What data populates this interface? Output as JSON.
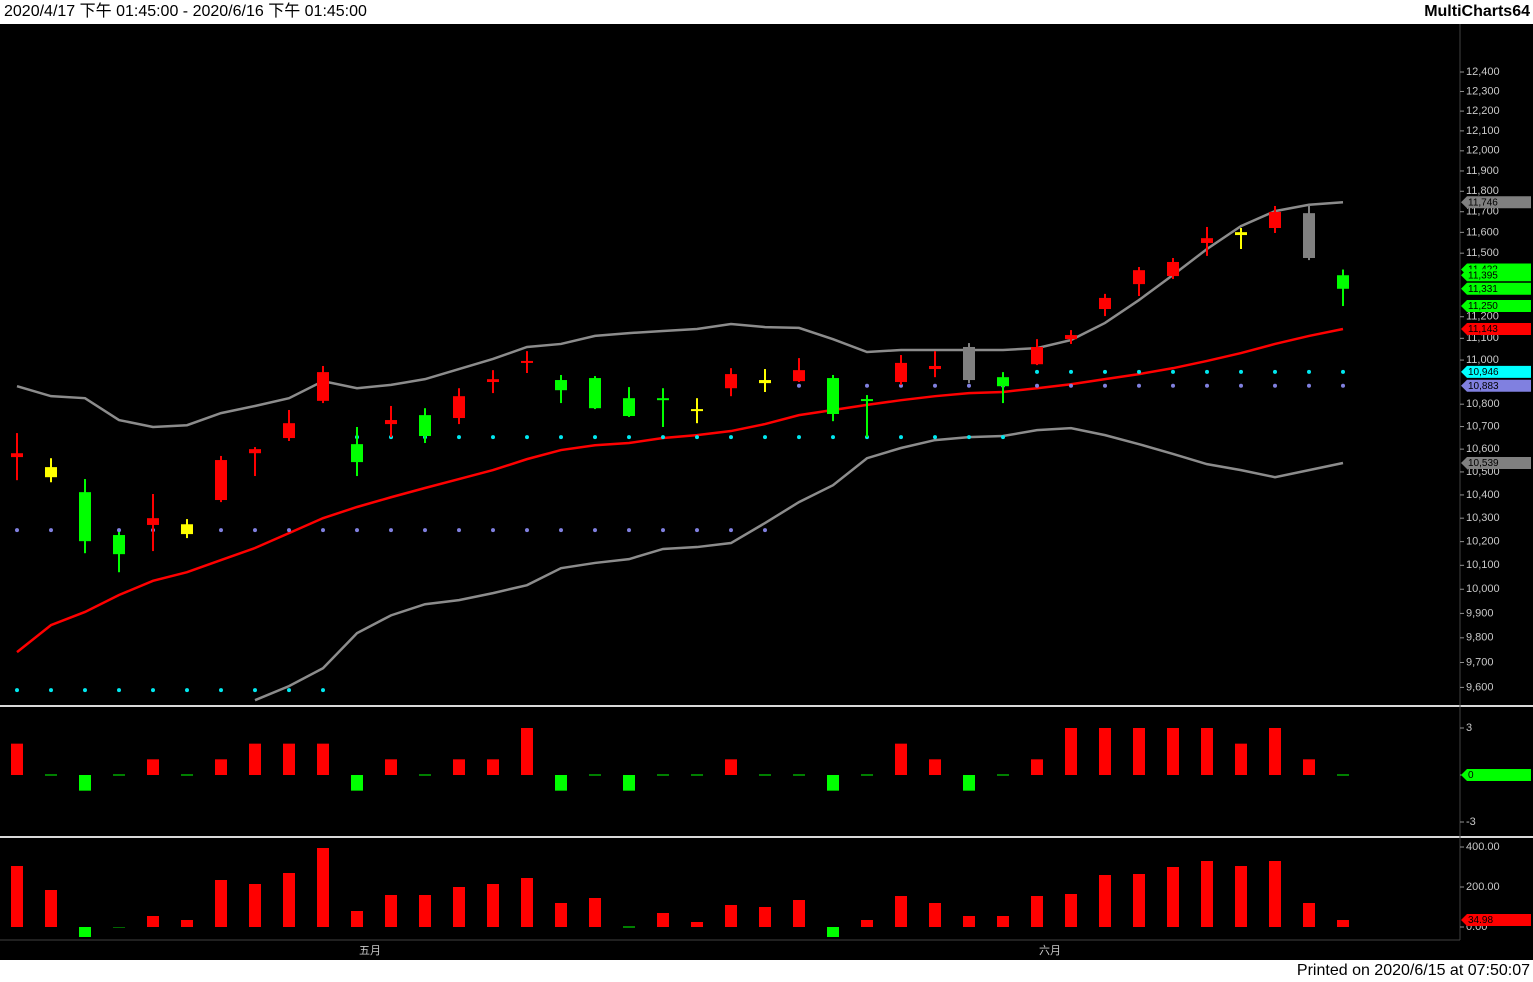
{
  "header": {
    "title": "2020/4/17 下午 01:45:00 - 2020/6/16 下午 01:45:00",
    "brand": "MultiCharts64"
  },
  "footer": {
    "printed": "Printed on 2020/6/15 at 07:50:07"
  },
  "chart_data": [
    {
      "type": "candlestick",
      "categories": [
        null,
        null,
        null,
        null,
        null,
        null,
        null,
        null,
        null,
        null,
        "五月",
        null,
        null,
        null,
        null,
        null,
        null,
        null,
        null,
        null,
        null,
        null,
        null,
        null,
        null,
        null,
        null,
        null,
        null,
        null,
        "六月",
        null,
        null,
        null,
        null,
        null,
        null,
        null,
        null,
        null
      ],
      "open": [
        10565,
        10477,
        10412,
        10228,
        10271,
        10232,
        10378,
        10582,
        10649,
        10815,
        10622,
        10711,
        10751,
        10738,
        10900,
        10987,
        10909,
        10918,
        10827,
        10827,
        10769,
        10872,
        10895,
        10904,
        10918,
        10823,
        10900,
        10959,
        10909,
        10922,
        10981,
        11096,
        11236,
        11353,
        11391,
        11549,
        11587,
        11621,
        11693,
        11395
      ],
      "high": [
        10671,
        10560,
        10469,
        10241,
        10404,
        10296,
        10570,
        10609,
        10774,
        10973,
        10698,
        10792,
        10782,
        10872,
        10954,
        11041,
        10932,
        10927,
        10877,
        10872,
        10827,
        10963,
        10959,
        11009,
        10932,
        10841,
        11023,
        11041,
        11078,
        10945,
        11096,
        11138,
        11307,
        11434,
        11477,
        11626,
        11621,
        11728,
        11733,
        11422
      ],
      "low": [
        10464,
        10455,
        10151,
        10071,
        10160,
        10215,
        10369,
        10482,
        10636,
        10805,
        10482,
        10653,
        10627,
        10711,
        10850,
        10941,
        10805,
        10778,
        10743,
        10698,
        10715,
        10836,
        10855,
        10900,
        10724,
        10653,
        10887,
        10922,
        10895,
        10805,
        10977,
        11074,
        11203,
        11297,
        11377,
        11487,
        11520,
        11597,
        11467,
        11250
      ],
      "close": [
        10582,
        10521,
        10202,
        10147,
        10300,
        10274,
        10552,
        10600,
        10715,
        10945,
        10543,
        10729,
        10658,
        10836,
        10913,
        10996,
        10863,
        10782,
        10747,
        10818,
        10778,
        10936,
        10909,
        10954,
        10756,
        10815,
        10987,
        10973,
        11060,
        10881,
        11060,
        11115,
        11288,
        11419,
        11458,
        11572,
        11601,
        11699,
        11477,
        11331
      ],
      "candle_colors": [
        "#ff0000",
        "#ffff00",
        "#00ff00",
        "#00ff00",
        "#ff0000",
        "#ffff00",
        "#ff0000",
        "#ff0000",
        "#ff0000",
        "#ff0000",
        "#00ff00",
        "#ff0000",
        "#00ff00",
        "#ff0000",
        "#ff0000",
        "#ff0000",
        "#00ff00",
        "#00ff00",
        "#00ff00",
        "#00ff00",
        "#ffff00",
        "#ff0000",
        "#ffff00",
        "#ff0000",
        "#00ff00",
        "#00ff00",
        "#ff0000",
        "#ff0000",
        "#808080",
        "#00ff00",
        "#ff0000",
        "#ff0000",
        "#ff0000",
        "#ff0000",
        "#ff0000",
        "#ff0000",
        "#ffff00",
        "#ff0000",
        "#808080",
        "#00ff00"
      ],
      "lines": [
        {
          "color": "#8c8c8c",
          "values": [
            10881,
            10836,
            10827,
            10729,
            10698,
            10706,
            10760,
            10792,
            10827,
            10904,
            10872,
            10887,
            10913,
            10959,
            11005,
            11060,
            11074,
            11111,
            11124,
            11134,
            11143,
            11166,
            11152,
            11148,
            11096,
            11037,
            11046,
            11046,
            11046,
            11046,
            11055,
            11092,
            11171,
            11278,
            11396,
            11520,
            11630,
            11703,
            11734,
            11746
          ]
        },
        {
          "color": "#ff0000",
          "values": [
            9742,
            9852,
            9906,
            9976,
            10035,
            10071,
            10122,
            10173,
            10236,
            10300,
            10348,
            10390,
            10430,
            10469,
            10508,
            10556,
            10596,
            10617,
            10627,
            10649,
            10662,
            10680,
            10711,
            10751,
            10774,
            10797,
            10818,
            10836,
            10850,
            10855,
            10872,
            10890,
            10913,
            10936,
            10963,
            10996,
            11032,
            11074,
            11111,
            11143
          ]
        },
        {
          "color": "#8c8c8c",
          "values": [
            null,
            null,
            null,
            null,
            null,
            null,
            null,
            9549,
            9605,
            9677,
            9819,
            9892,
            9938,
            9955,
            9984,
            10017,
            10088,
            10110,
            10126,
            10169,
            10177,
            10194,
            10279,
            10369,
            10442,
            10560,
            10605,
            10640,
            10653,
            10658,
            10684,
            10693,
            10662,
            10622,
            10579,
            10534,
            10508,
            10477,
            10508,
            10539
          ]
        }
      ],
      "dots": [
        {
          "color": "#00e8f0",
          "values": [
            9589,
            9589,
            9589,
            9589,
            9589,
            9589,
            9589,
            9589,
            9589,
            9589,
            10653,
            10653,
            10653,
            10653,
            10653,
            10653,
            10653,
            10653,
            10653,
            10653,
            10653,
            10653,
            10653,
            10653,
            10653,
            10653,
            10653,
            10653,
            10653,
            10653,
            10946,
            10946,
            10946,
            10946,
            10946,
            10946,
            10946,
            10946,
            10946,
            10946
          ]
        },
        {
          "color": "#8080e0",
          "values": [
            10249,
            10249,
            10249,
            10249,
            10249,
            10249,
            10249,
            10249,
            10249,
            10249,
            10249,
            10249,
            10249,
            10249,
            10249,
            10249,
            10249,
            10249,
            10249,
            10249,
            10249,
            10249,
            10249,
            10883,
            10883,
            10883,
            10883,
            10883,
            10883,
            10883,
            10883,
            10883,
            10883,
            10883,
            10883,
            10883,
            10883,
            10883,
            10883,
            10883
          ]
        }
      ],
      "log_scale": true,
      "ylim": [
        9530,
        12650
      ],
      "yticks": [
        {
          "value": 9600,
          "label": "9,600"
        },
        {
          "value": 9700,
          "label": "9,700"
        },
        {
          "value": 9800,
          "label": "9,800"
        },
        {
          "value": 9900,
          "label": "9,900"
        },
        {
          "value": 10000,
          "label": "10,000"
        },
        {
          "value": 10100,
          "label": "10,100"
        },
        {
          "value": 10200,
          "label": "10,200"
        },
        {
          "value": 10300,
          "label": "10,300"
        },
        {
          "value": 10400,
          "label": "10,400"
        },
        {
          "value": 10500,
          "label": "10,500"
        },
        {
          "value": 10600,
          "label": "10,600"
        },
        {
          "value": 10700,
          "label": "10,700"
        },
        {
          "value": 10800,
          "label": "10,800"
        },
        {
          "value": 11000,
          "label": "11,000"
        },
        {
          "value": 11100,
          "label": "11,100"
        },
        {
          "value": 11200,
          "label": "11,200"
        },
        {
          "value": 11500,
          "label": "11,500"
        },
        {
          "value": 11600,
          "label": "11,600"
        },
        {
          "value": 11700,
          "label": "11,700"
        },
        {
          "value": 11800,
          "label": "11,800"
        },
        {
          "value": 11900,
          "label": "11,900"
        },
        {
          "value": 12000,
          "label": "12,000"
        },
        {
          "value": 12100,
          "label": "12,100"
        },
        {
          "value": 12200,
          "label": "12,200"
        },
        {
          "value": 12300,
          "label": "12,300"
        },
        {
          "value": 12400,
          "label": "12,400"
        }
      ],
      "price_markers": [
        {
          "value": 11746,
          "label": "11,746",
          "color": "#808080"
        },
        {
          "value": 11422,
          "label": "11,422",
          "color": "#00ff00"
        },
        {
          "value": 11395,
          "label": "11,395",
          "color": "#00ff00"
        },
        {
          "value": 11331,
          "label": "11,331",
          "color": "#00ff00"
        },
        {
          "value": 11250,
          "label": "11,250",
          "color": "#00ff00"
        },
        {
          "value": 11143,
          "label": "11,143",
          "color": "#ff0000"
        },
        {
          "value": 10946,
          "label": "10,946",
          "color": "#00ffff"
        },
        {
          "value": 10883,
          "label": "10,883",
          "color": "#8080e0"
        },
        {
          "value": 10539,
          "label": "10,539",
          "color": "#808080"
        }
      ]
    },
    {
      "type": "bar",
      "values": [
        2,
        0,
        -1,
        0,
        1,
        0,
        1,
        2,
        2,
        2,
        -1,
        1,
        0,
        1,
        1,
        3,
        -1,
        0,
        -1,
        0,
        0,
        1,
        0,
        0,
        -1,
        0,
        2,
        1,
        -1,
        0,
        1,
        3,
        3,
        3,
        3,
        3,
        2,
        3,
        1,
        0
      ],
      "up_color": "#ff0000",
      "down_color": "#00ff00",
      "ylim": [
        -3.83,
        4.34
      ],
      "yticks": [
        3,
        0,
        -3
      ],
      "price_markers": [
        {
          "value": 0,
          "color": "#00ff00"
        }
      ]
    },
    {
      "type": "bar",
      "values": [
        305,
        185,
        -50,
        -2,
        55,
        35,
        235,
        215,
        270,
        395,
        80,
        160,
        160,
        200,
        215,
        245,
        120,
        145,
        0,
        70,
        25,
        110,
        100,
        135,
        -50,
        35,
        155,
        120,
        55,
        55,
        155,
        165,
        260,
        265,
        300,
        330,
        305,
        330,
        120,
        34.98
      ],
      "up_color": "#ff0000",
      "down_color": "#00ff00",
      "ylim": [
        -65,
        440
      ],
      "yticks": [
        {
          "value": 400,
          "label": "400.00"
        },
        {
          "value": 200,
          "label": "200.00"
        },
        {
          "value": 0,
          "label": "0.00"
        }
      ],
      "price_markers": [
        {
          "value": 34.98,
          "color": "#ff0000"
        }
      ]
    }
  ]
}
